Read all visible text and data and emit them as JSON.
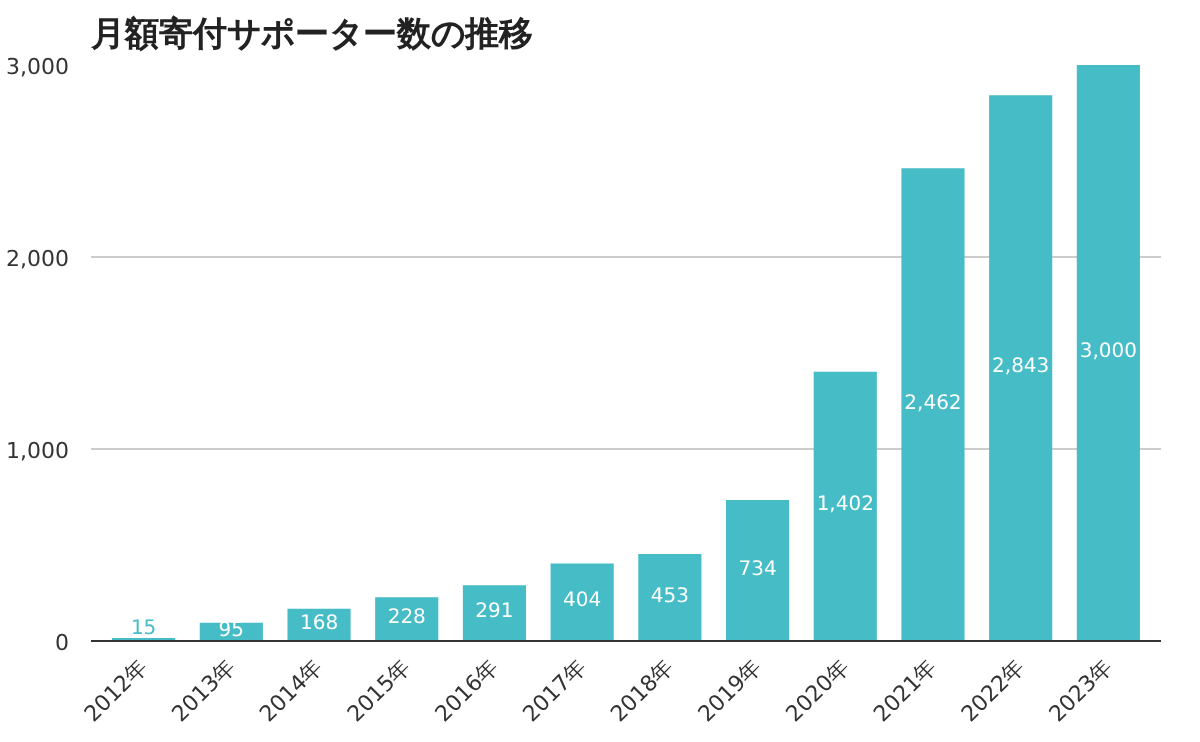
{
  "chart_data": {
    "type": "bar",
    "title": "月額寄付サポーター数の推移",
    "categories": [
      "2012年",
      "2013年",
      "2014年",
      "2015年",
      "2016年",
      "2017年",
      "2018年",
      "2019年",
      "2020年",
      "2021年",
      "2022年",
      "2023年"
    ],
    "values": [
      15,
      95,
      168,
      228,
      291,
      404,
      453,
      734,
      1402,
      2462,
      2843,
      3000
    ],
    "value_labels": [
      "15",
      "95",
      "168",
      "228",
      "291",
      "404",
      "453",
      "734",
      "1,402",
      "2,462",
      "2,843",
      "3,000"
    ],
    "color": "#46bdc6",
    "ylim": [
      0,
      3000
    ],
    "yticks": [
      {
        "value": 0,
        "label": "0"
      },
      {
        "value": 1000,
        "label": "1,000"
      },
      {
        "value": 2000,
        "label": "2,000"
      },
      {
        "value": 3000,
        "label": "3,000"
      }
    ],
    "grid": "y"
  }
}
